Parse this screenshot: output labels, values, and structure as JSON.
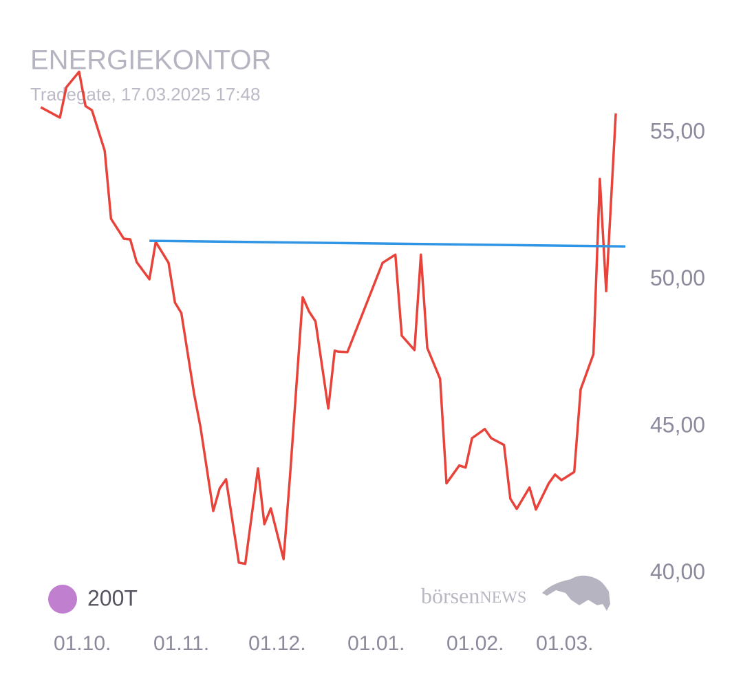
{
  "chart_data": {
    "type": "line",
    "title": "ENERGIEKONTOR",
    "subtitle": "Tradegate, 17.03.2025 17:48",
    "watermark": [
      "börsen",
      "NEWS"
    ],
    "legend": [
      {
        "name": "200T",
        "color": "#c17fd0"
      }
    ],
    "xlim": [
      "16.09.",
      "20.03."
    ],
    "xticks": [
      "01.10.",
      "01.11.",
      "01.12.",
      "01.01.",
      "01.02.",
      "01.03."
    ],
    "ylim": [
      39,
      58
    ],
    "yticks": [
      {
        "value": 40,
        "label": "40,00"
      },
      {
        "value": 45,
        "label": "45,00"
      },
      {
        "value": 50,
        "label": "50,00"
      },
      {
        "value": 55,
        "label": "55,00"
      }
    ],
    "series": [
      {
        "color": "#e8433a",
        "x": [
          "18.09.",
          "24.09.",
          "26.09.",
          "30.09.",
          "02.10.",
          "04.10.",
          "08.10.",
          "10.10.",
          "14.10.",
          "16.10.",
          "18.10.",
          "22.10.",
          "24.10.",
          "28.10.",
          "30.10.",
          "01.11.",
          "05.11.",
          "07.11.",
          "11.11.",
          "13.11.",
          "15.11.",
          "19.11.",
          "21.11.",
          "25.11.",
          "27.11.",
          "29.11.",
          "03.12.",
          "05.12.",
          "09.12.",
          "11.12.",
          "13.12.",
          "17.12.",
          "19.12.",
          "20.12.",
          "23.12.",
          "03.01.",
          "07.01.",
          "09.01.",
          "13.01.",
          "15.01.",
          "17.01.",
          "21.01.",
          "23.01.",
          "27.01.",
          "29.01.",
          "31.01.",
          "04.02.",
          "06.02.",
          "10.02.",
          "12.02.",
          "14.02.",
          "18.02.",
          "20.02.",
          "24.02.",
          "26.02.",
          "28.02.",
          "04.03.",
          "06.03.",
          "10.03.",
          "12.03.",
          "14.03.",
          "17.03."
        ],
        "values": [
          55.87,
          55.52,
          56.55,
          57.08,
          55.91,
          55.77,
          54.39,
          52.07,
          51.39,
          51.37,
          50.6,
          50.01,
          51.28,
          50.57,
          49.22,
          48.86,
          46.1,
          44.98,
          42.12,
          42.89,
          43.2,
          40.36,
          40.32,
          43.57,
          41.67,
          42.21,
          40.48,
          43.29,
          49.4,
          48.91,
          48.58,
          45.61,
          47.58,
          47.55,
          47.53,
          50.57,
          50.85,
          48.09,
          47.6,
          50.85,
          47.67,
          46.62,
          43.06,
          43.67,
          43.6,
          44.6,
          44.91,
          44.6,
          44.37,
          42.54,
          42.19,
          42.92,
          42.17,
          43.06,
          43.36,
          43.17,
          43.45,
          46.26,
          47.46,
          53.43,
          49.61,
          55.66
        ]
      },
      {
        "color": "#2f95e4",
        "x": [
          "22.10.",
          "20.03."
        ],
        "values": [
          51.32,
          51.13
        ]
      }
    ]
  }
}
